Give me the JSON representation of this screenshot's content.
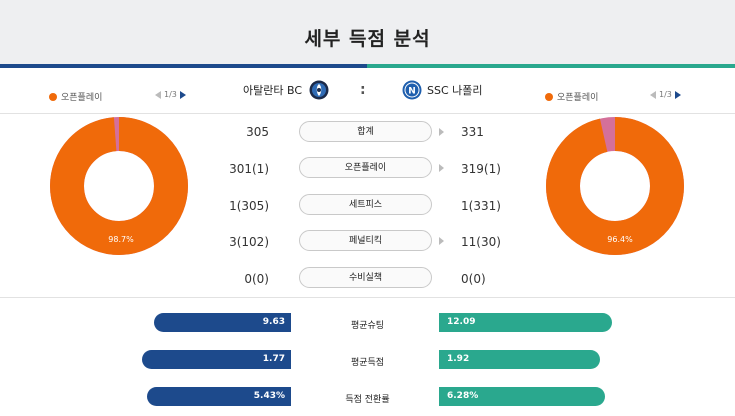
{
  "title": "세부 득점 분석",
  "teams": {
    "home": {
      "name": "아탈란타 BC",
      "crest_icon": "atalanta-crest-icon",
      "color": "#1d4a8c"
    },
    "away": {
      "name": "SSC 나폴리",
      "crest_icon": "napoli-crest-icon",
      "color": "#2aa88e"
    },
    "separator": ":"
  },
  "left_panel": {
    "legend_label": "오픈플레이",
    "legend_color": "#f06a0a",
    "pager": "1/3",
    "donut_label": "98.7%",
    "donut_fraction": 0.987,
    "donut_colors": [
      "#f06a0a",
      "#d4709a"
    ]
  },
  "right_panel": {
    "legend_label": "오픈플레이",
    "legend_color": "#f06a0a",
    "pager": "1/3",
    "donut_label": "96.4%",
    "donut_fraction": 0.964,
    "donut_colors": [
      "#f06a0a",
      "#d4709a"
    ]
  },
  "stats": [
    {
      "label": "합계",
      "home": "305",
      "away": "331",
      "arrow": true
    },
    {
      "label": "오픈플레이",
      "home": "301(1)",
      "away": "319(1)",
      "arrow": true
    },
    {
      "label": "세트피스",
      "home": "1(305)",
      "away": "1(331)",
      "arrow": false
    },
    {
      "label": "페널티킥",
      "home": "3(102)",
      "away": "11(30)",
      "arrow": true
    },
    {
      "label": "수비실책",
      "home": "0(0)",
      "away": "0(0)",
      "arrow": false
    }
  ],
  "comparisons": [
    {
      "label": "평균슈팅",
      "home": "9.63",
      "away": "12.09",
      "home_value": 9.63,
      "away_value": 12.09
    },
    {
      "label": "평균득점",
      "home": "1.77",
      "away": "1.92",
      "home_value": 1.77,
      "away_value": 1.92
    },
    {
      "label": "득점 전환률",
      "home": "5.43%",
      "away": "6.28%",
      "home_value": 5.43,
      "away_value": 6.28
    }
  ]
}
